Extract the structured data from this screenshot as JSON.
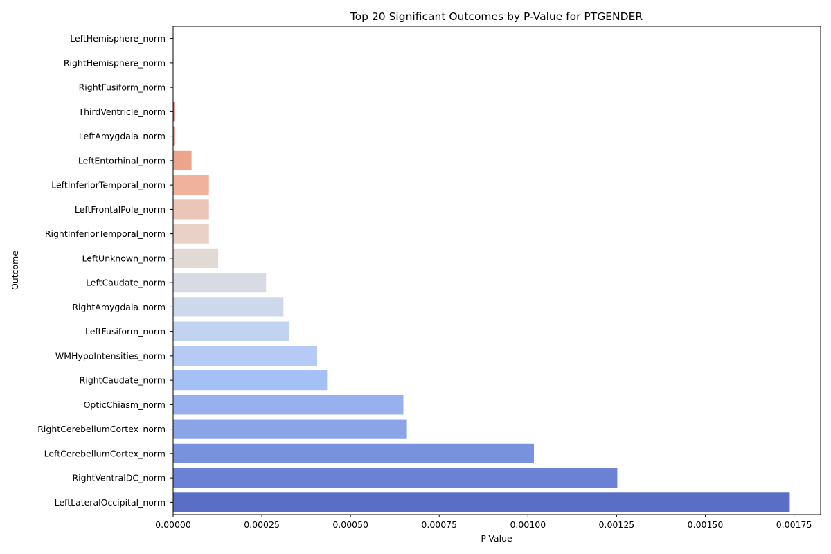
{
  "chart_data": {
    "type": "bar",
    "orientation": "horizontal",
    "title": "Top 20 Significant Outcomes by P-Value for PTGENDER",
    "xlabel": "P-Value",
    "ylabel": "Outcome",
    "xlim": [
      0,
      0.001825
    ],
    "xticks": [
      0,
      0.00025,
      0.0005,
      0.00075,
      0.001,
      0.00125,
      0.0015,
      0.00175
    ],
    "xtick_labels": [
      "0.00000",
      "0.00025",
      "0.00050",
      "0.00075",
      "0.00100",
      "0.00125",
      "0.00150",
      "0.00175"
    ],
    "grid": false,
    "legend": "none",
    "categories": [
      "LeftHemisphere_norm",
      "RightHemisphere_norm",
      "RightFusiform_norm",
      "ThirdVentricle_norm",
      "LeftAmygdala_norm",
      "LeftEntorhinal_norm",
      "LeftInferiorTemporal_norm",
      "LeftFrontalPole_norm",
      "RightInferiorTemporal_norm",
      "LeftUnknown_norm",
      "LeftCaudate_norm",
      "RightAmygdala_norm",
      "LeftFusiform_norm",
      "WMHypoIntensities_norm",
      "RightCaudate_norm",
      "OpticChiasm_norm",
      "RightCerebellumCortex_norm",
      "LeftCerebellumCortex_norm",
      "RightVentralDC_norm",
      "LeftLateralOccipital_norm"
    ],
    "values": [
      1e-07,
      2e-07,
      5e-07,
      3e-06,
      3e-06,
      5.2e-05,
      0.000101,
      0.000101,
      0.000101,
      0.000127,
      0.000262,
      0.000311,
      0.000328,
      0.000406,
      0.000434,
      0.000649,
      0.000659,
      0.001017,
      0.001252,
      0.001738
    ],
    "colors": [
      "#b40426",
      "#be242e",
      "#cc403a",
      "#d8573f",
      "#e36c55",
      "#eca58a",
      "#f0b29c",
      "#ebc5b8",
      "#e9d1c7",
      "#e0d9d4",
      "#d8dbe3",
      "#cdd8ea",
      "#c2d3f1",
      "#b6caf6",
      "#a5c0f4",
      "#98b1ee",
      "#8aa4e8",
      "#7892de",
      "#6b81d4",
      "#5a6ec5"
    ]
  }
}
